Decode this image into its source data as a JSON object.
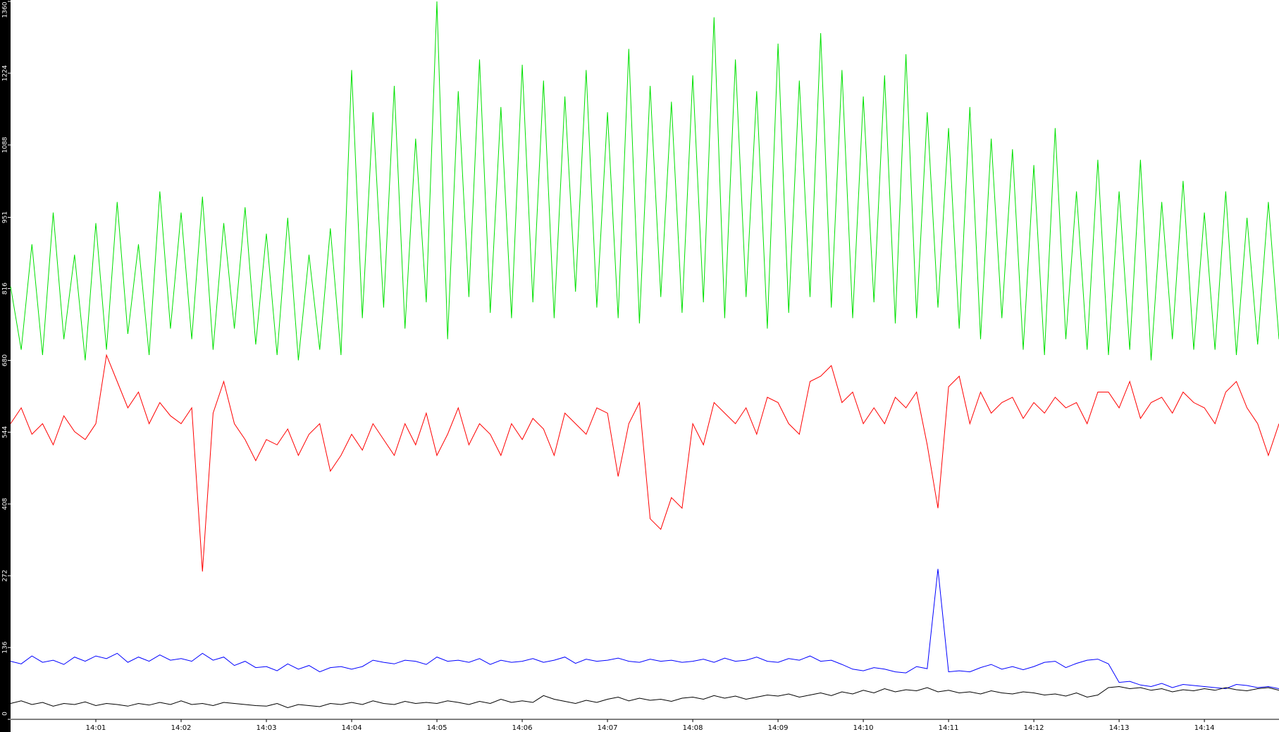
{
  "chart_data": {
    "type": "line",
    "categories": [
      null,
      null,
      null,
      null,
      null,
      null,
      null,
      null,
      "14:01",
      null,
      null,
      null,
      null,
      null,
      null,
      null,
      "14:02",
      null,
      null,
      null,
      null,
      null,
      null,
      null,
      "14:03",
      null,
      null,
      null,
      null,
      null,
      null,
      null,
      "14:04",
      null,
      null,
      null,
      null,
      null,
      null,
      null,
      "14:05",
      null,
      null,
      null,
      null,
      null,
      null,
      null,
      "14:06",
      null,
      null,
      null,
      null,
      null,
      null,
      null,
      "14:07",
      null,
      null,
      null,
      null,
      null,
      null,
      null,
      "14:08",
      null,
      null,
      null,
      null,
      null,
      null,
      null,
      "14:09",
      null,
      null,
      null,
      null,
      null,
      null,
      null,
      "14:10",
      null,
      null,
      null,
      null,
      null,
      null,
      null,
      "14:11",
      null,
      null,
      null,
      null,
      null,
      null,
      null,
      "14:12",
      null,
      null,
      null,
      null,
      null,
      null,
      null,
      "14:13",
      null,
      null,
      null,
      null,
      null,
      null,
      null,
      "14:14",
      null,
      null,
      null,
      null,
      null,
      null,
      null
    ],
    "series": [
      {
        "color": "#00e000",
        "values": [
          820,
          700,
          900,
          690,
          960,
          720,
          880,
          680,
          940,
          700,
          980,
          730,
          900,
          690,
          1000,
          740,
          960,
          720,
          990,
          700,
          940,
          740,
          970,
          710,
          920,
          690,
          950,
          680,
          880,
          700,
          930,
          690,
          1230,
          760,
          1150,
          780,
          1200,
          740,
          1100,
          790,
          1360,
          720,
          1190,
          800,
          1250,
          770,
          1160,
          760,
          1240,
          790,
          1210,
          760,
          1180,
          810,
          1230,
          780,
          1150,
          760,
          1270,
          750,
          1200,
          800,
          1170,
          770,
          1220,
          790,
          1330,
          760,
          1250,
          800,
          1190,
          740,
          1280,
          770,
          1210,
          800,
          1300,
          780,
          1230,
          760,
          1180,
          790,
          1220,
          750,
          1260,
          760,
          1150,
          780,
          1120,
          740,
          1160,
          720,
          1100,
          760,
          1080,
          700,
          1050,
          690,
          1120,
          720,
          1000,
          700,
          1060,
          690,
          1000,
          700,
          1060,
          680,
          980,
          720,
          1020,
          700,
          960,
          700,
          1000,
          690,
          950,
          710,
          980,
          720
        ]
      },
      {
        "color": "#ff0000",
        "values": [
          560,
          590,
          540,
          560,
          520,
          575,
          545,
          530,
          560,
          690,
          640,
          590,
          620,
          560,
          600,
          575,
          560,
          590,
          280,
          580,
          640,
          560,
          530,
          490,
          530,
          520,
          550,
          500,
          540,
          560,
          470,
          500,
          540,
          510,
          560,
          530,
          500,
          560,
          520,
          580,
          500,
          540,
          590,
          520,
          560,
          540,
          500,
          560,
          530,
          570,
          550,
          500,
          580,
          560,
          540,
          590,
          580,
          460,
          560,
          600,
          380,
          360,
          420,
          400,
          560,
          520,
          600,
          580,
          560,
          590,
          540,
          610,
          600,
          560,
          540,
          640,
          650,
          670,
          600,
          620,
          560,
          590,
          560,
          610,
          590,
          620,
          520,
          400,
          630,
          650,
          560,
          620,
          580,
          600,
          610,
          570,
          600,
          580,
          610,
          590,
          600,
          560,
          620,
          620,
          590,
          640,
          570,
          600,
          610,
          580,
          620,
          600,
          590,
          560,
          620,
          640,
          590,
          560,
          500,
          560
        ]
      },
      {
        "color": "#0000ff",
        "values": [
          110,
          105,
          120,
          108,
          112,
          104,
          118,
          110,
          120,
          115,
          125,
          108,
          118,
          110,
          122,
          112,
          115,
          110,
          125,
          112,
          118,
          102,
          110,
          98,
          100,
          92,
          105,
          95,
          102,
          90,
          98,
          100,
          95,
          100,
          112,
          108,
          105,
          112,
          110,
          104,
          118,
          110,
          112,
          108,
          115,
          104,
          112,
          108,
          110,
          115,
          108,
          112,
          118,
          106,
          114,
          110,
          112,
          116,
          110,
          108,
          114,
          110,
          112,
          108,
          110,
          114,
          108,
          116,
          110,
          112,
          118,
          110,
          108,
          115,
          112,
          120,
          110,
          112,
          104,
          95,
          92,
          98,
          95,
          90,
          88,
          100,
          96,
          285,
          90,
          92,
          90,
          98,
          104,
          95,
          100,
          94,
          100,
          108,
          110,
          98,
          106,
          112,
          114,
          105,
          70,
          72,
          65,
          62,
          68,
          60,
          66,
          64,
          62,
          60,
          58,
          66,
          64,
          60,
          62,
          58
        ]
      },
      {
        "color": "#000000",
        "values": [
          30,
          35,
          28,
          32,
          25,
          30,
          28,
          33,
          26,
          30,
          28,
          25,
          30,
          27,
          32,
          28,
          35,
          28,
          30,
          26,
          32,
          30,
          28,
          26,
          25,
          30,
          22,
          28,
          26,
          24,
          30,
          28,
          32,
          28,
          35,
          30,
          28,
          34,
          30,
          32,
          30,
          35,
          32,
          28,
          34,
          30,
          38,
          32,
          35,
          32,
          45,
          38,
          34,
          30,
          36,
          32,
          38,
          42,
          35,
          40,
          36,
          38,
          34,
          40,
          42,
          38,
          45,
          40,
          44,
          38,
          42,
          46,
          44,
          48,
          42,
          46,
          50,
          45,
          52,
          48,
          55,
          50,
          58,
          52,
          56,
          54,
          60,
          52,
          55,
          50,
          52,
          48,
          54,
          50,
          48,
          52,
          50,
          46,
          48,
          44,
          50,
          42,
          46,
          60,
          62,
          58,
          60,
          55,
          58,
          52,
          56,
          54,
          58,
          55,
          60,
          56,
          54,
          58,
          60,
          55
        ]
      }
    ],
    "ylim": [
      0,
      1360
    ],
    "yticks": [
      0,
      136,
      272,
      408,
      544,
      680,
      816,
      951,
      1088,
      1224,
      1360
    ]
  }
}
